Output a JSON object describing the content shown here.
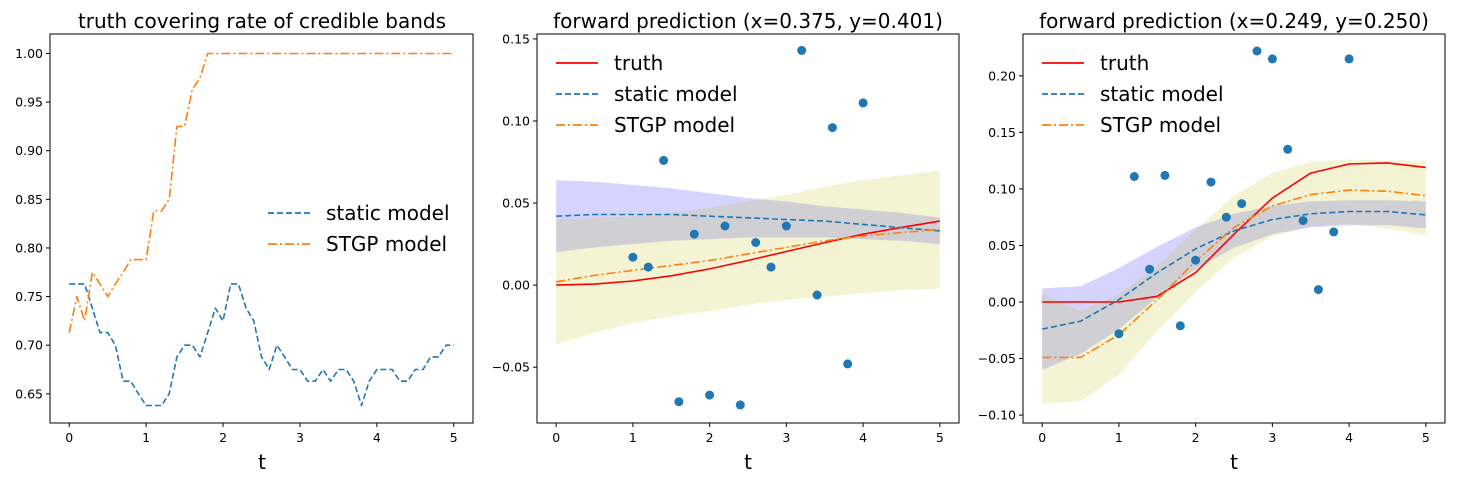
{
  "chart_data": [
    {
      "type": "line",
      "title": "truth covering rate of credible bands",
      "xlabel": "t",
      "ylabel": "",
      "xlim": [
        -0.25,
        5.25
      ],
      "ylim": [
        0.62,
        1.02
      ],
      "xticks": [
        "0",
        "1",
        "2",
        "3",
        "4",
        "5"
      ],
      "yticks": [
        "0.65",
        "0.70",
        "0.75",
        "0.80",
        "0.85",
        "0.90",
        "0.95",
        "1.00"
      ],
      "legend": {
        "position": "center-right",
        "entries": [
          "static model",
          "STGP model"
        ]
      },
      "series": [
        {
          "name": "static model",
          "color": "#1f77b4",
          "style": "dashed",
          "x": [
            0.0,
            0.1,
            0.2,
            0.3,
            0.4,
            0.5,
            0.6,
            0.7,
            0.8,
            0.9,
            1.0,
            1.1,
            1.2,
            1.3,
            1.4,
            1.5,
            1.6,
            1.7,
            1.8,
            1.9,
            2.0,
            2.1,
            2.2,
            2.3,
            2.4,
            2.5,
            2.6,
            2.7,
            2.8,
            2.9,
            3.0,
            3.1,
            3.2,
            3.3,
            3.4,
            3.5,
            3.6,
            3.7,
            3.8,
            3.9,
            4.0,
            4.1,
            4.2,
            4.3,
            4.4,
            4.5,
            4.6,
            4.7,
            4.8,
            4.9,
            5.0
          ],
          "values": [
            0.763,
            0.763,
            0.763,
            0.738,
            0.713,
            0.713,
            0.7,
            0.663,
            0.663,
            0.65,
            0.638,
            0.638,
            0.638,
            0.65,
            0.688,
            0.7,
            0.7,
            0.688,
            0.713,
            0.738,
            0.725,
            0.763,
            0.763,
            0.738,
            0.725,
            0.688,
            0.675,
            0.7,
            0.688,
            0.675,
            0.675,
            0.663,
            0.663,
            0.675,
            0.663,
            0.675,
            0.675,
            0.663,
            0.638,
            0.663,
            0.675,
            0.675,
            0.675,
            0.663,
            0.663,
            0.675,
            0.675,
            0.688,
            0.688,
            0.7,
            0.7
          ]
        },
        {
          "name": "STGP model",
          "color": "#ff7f0e",
          "style": "dashdot",
          "x": [
            0.0,
            0.1,
            0.2,
            0.3,
            0.4,
            0.5,
            0.6,
            0.7,
            0.8,
            0.9,
            1.0,
            1.1,
            1.2,
            1.3,
            1.4,
            1.5,
            1.6,
            1.7,
            1.8,
            1.9,
            2.0,
            2.1,
            2.2,
            2.3,
            2.4,
            2.5,
            2.6,
            2.7,
            2.8,
            2.9,
            3.0,
            3.1,
            3.2,
            3.3,
            3.4,
            3.5,
            3.6,
            3.7,
            3.8,
            3.9,
            4.0,
            4.1,
            4.2,
            4.3,
            4.4,
            4.5,
            4.6,
            4.7,
            4.8,
            4.9,
            5.0
          ],
          "values": [
            0.713,
            0.75,
            0.725,
            0.775,
            0.763,
            0.75,
            0.763,
            0.775,
            0.788,
            0.788,
            0.788,
            0.838,
            0.838,
            0.85,
            0.925,
            0.925,
            0.963,
            0.975,
            1.0,
            1.0,
            1.0,
            1.0,
            1.0,
            1.0,
            1.0,
            1.0,
            1.0,
            1.0,
            1.0,
            1.0,
            1.0,
            1.0,
            1.0,
            1.0,
            1.0,
            1.0,
            1.0,
            1.0,
            1.0,
            1.0,
            1.0,
            1.0,
            1.0,
            1.0,
            1.0,
            1.0,
            1.0,
            1.0,
            1.0,
            1.0,
            1.0
          ]
        }
      ]
    },
    {
      "type": "line",
      "title": "forward prediction (x=0.375, y=0.401)",
      "xlabel": "t",
      "ylabel": "",
      "xlim": [
        -0.25,
        5.25
      ],
      "ylim": [
        -0.084,
        0.153
      ],
      "xticks": [
        "0",
        "1",
        "2",
        "3",
        "4",
        "5"
      ],
      "yticks": [
        "−0.05",
        "0.00",
        "0.05",
        "0.10",
        "0.15"
      ],
      "legend": {
        "position": "upper-left",
        "entries": [
          "truth",
          "static model",
          "STGP model"
        ]
      },
      "x": [
        0.0,
        0.5,
        1.0,
        1.5,
        2.0,
        2.5,
        3.0,
        3.5,
        4.0,
        4.5,
        5.0
      ],
      "series": [
        {
          "name": "truth",
          "color": "#ff0000",
          "style": "solid",
          "values": [
            0.0,
            0.0006,
            0.0025,
            0.0057,
            0.0099,
            0.015,
            0.0205,
            0.0259,
            0.031,
            0.0352,
            0.039
          ]
        },
        {
          "name": "static model",
          "color": "#1f77b4",
          "style": "dashed",
          "values": [
            0.042,
            0.043,
            0.043,
            0.043,
            0.042,
            0.041,
            0.04,
            0.039,
            0.037,
            0.035,
            0.033
          ]
        },
        {
          "name": "STGP model",
          "color": "#ff7f0e",
          "style": "dashdot",
          "values": [
            0.002,
            0.006,
            0.009,
            0.012,
            0.015,
            0.019,
            0.023,
            0.027,
            0.03,
            0.032,
            0.034
          ]
        }
      ],
      "bands": [
        {
          "name": "static model band",
          "color": "#0000ff",
          "lower": [
            0.02,
            0.023,
            0.025,
            0.027,
            0.028,
            0.029,
            0.029,
            0.029,
            0.028,
            0.027,
            0.025
          ],
          "upper": [
            0.064,
            0.063,
            0.061,
            0.059,
            0.056,
            0.053,
            0.051,
            0.048,
            0.046,
            0.044,
            0.041
          ]
        },
        {
          "name": "STGP model band",
          "color": "#bfbf00",
          "lower": [
            -0.036,
            -0.029,
            -0.023,
            -0.019,
            -0.016,
            -0.012,
            -0.009,
            -0.007,
            -0.005,
            -0.003,
            -0.002
          ],
          "upper": [
            0.04,
            0.041,
            0.042,
            0.044,
            0.047,
            0.051,
            0.055,
            0.06,
            0.064,
            0.067,
            0.07
          ]
        }
      ],
      "observations": {
        "x": [
          1.0,
          1.2,
          1.4,
          1.6,
          1.8,
          2.0,
          2.2,
          2.4,
          2.6,
          2.8,
          3.0,
          3.2,
          3.4,
          3.6,
          3.8,
          4.0
        ],
        "y": [
          0.017,
          0.011,
          0.076,
          -0.071,
          0.031,
          -0.067,
          0.036,
          -0.073,
          0.026,
          0.011,
          0.036,
          0.143,
          -0.006,
          0.096,
          -0.048,
          0.111
        ]
      }
    },
    {
      "type": "line",
      "title": "forward prediction (x=0.249, y=0.250)",
      "xlabel": "t",
      "ylabel": "",
      "xlim": [
        -0.25,
        5.25
      ],
      "ylim": [
        -0.107,
        0.237
      ],
      "xticks": [
        "0",
        "1",
        "2",
        "3",
        "4",
        "5"
      ],
      "yticks": [
        "−0.10",
        "−0.05",
        "0.00",
        "0.05",
        "0.10",
        "0.15",
        "0.20"
      ],
      "legend": {
        "position": "upper-left",
        "entries": [
          "truth",
          "static model",
          "STGP model"
        ]
      },
      "x": [
        0.0,
        0.5,
        1.0,
        1.5,
        2.0,
        2.5,
        3.0,
        3.5,
        4.0,
        4.5,
        5.0
      ],
      "series": [
        {
          "name": "truth",
          "color": "#ff0000",
          "style": "solid",
          "values": [
            0.0,
            0.0,
            0.0,
            0.005,
            0.026,
            0.06,
            0.092,
            0.114,
            0.122,
            0.123,
            0.119
          ]
        },
        {
          "name": "static model",
          "color": "#1f77b4",
          "style": "dashed",
          "values": [
            -0.024,
            -0.017,
            0.002,
            0.026,
            0.047,
            0.063,
            0.073,
            0.078,
            0.08,
            0.08,
            0.077
          ]
        },
        {
          "name": "STGP model",
          "color": "#ff7f0e",
          "style": "dashdot",
          "values": [
            -0.049,
            -0.049,
            -0.029,
            0.002,
            0.036,
            0.066,
            0.085,
            0.095,
            0.099,
            0.098,
            0.094
          ]
        }
      ],
      "bands": [
        {
          "name": "static model band",
          "color": "#0000ff",
          "lower": [
            -0.06,
            -0.046,
            -0.024,
            0.004,
            0.029,
            0.048,
            0.06,
            0.066,
            0.068,
            0.068,
            0.065
          ],
          "upper": [
            0.012,
            0.014,
            0.03,
            0.049,
            0.066,
            0.078,
            0.085,
            0.089,
            0.09,
            0.09,
            0.089
          ]
        },
        {
          "name": "STGP model band",
          "color": "#bfbf00",
          "lower": [
            -0.09,
            -0.088,
            -0.064,
            -0.026,
            0.009,
            0.039,
            0.058,
            0.067,
            0.069,
            0.065,
            0.059
          ],
          "upper": [
            0.008,
            -0.008,
            0.007,
            0.032,
            0.064,
            0.094,
            0.114,
            0.124,
            0.126,
            0.125,
            0.125
          ]
        }
      ],
      "observations": {
        "x": [
          1.0,
          1.2,
          1.4,
          1.6,
          1.8,
          2.0,
          2.2,
          2.4,
          2.6,
          2.8,
          3.0,
          3.2,
          3.4,
          3.6,
          3.8,
          4.0
        ],
        "y": [
          -0.028,
          0.111,
          0.029,
          0.112,
          -0.021,
          0.037,
          0.106,
          0.075,
          0.087,
          0.222,
          0.215,
          0.135,
          0.072,
          0.011,
          0.062,
          0.215
        ]
      }
    }
  ]
}
